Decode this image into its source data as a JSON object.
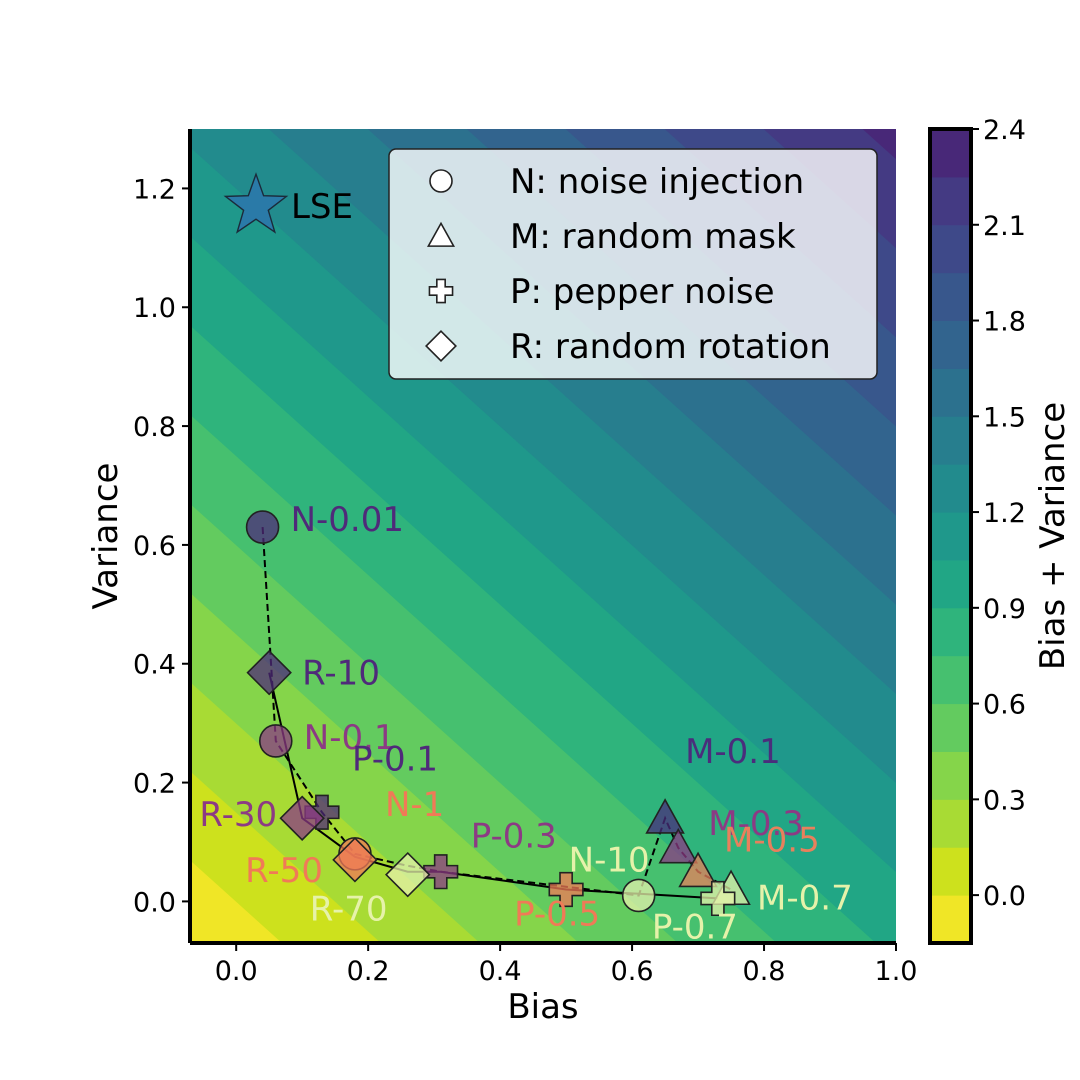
{
  "chart_data": {
    "type": "scatter",
    "xlabel": "Bias",
    "ylabel": "Variance",
    "xlim": [
      -0.07,
      1.0
    ],
    "ylim": [
      -0.07,
      1.3
    ],
    "x_ticks": [
      "0.0",
      "0.2",
      "0.4",
      "0.6",
      "0.8",
      "1.0"
    ],
    "y_ticks": [
      "0.0",
      "0.2",
      "0.4",
      "0.6",
      "0.8",
      "1.0",
      "1.2"
    ],
    "background": {
      "type": "filled-contour",
      "quantity": "Bias + Variance",
      "levels": [
        -0.15,
        0.0,
        0.15,
        0.3,
        0.45,
        0.6,
        0.75,
        0.9,
        1.05,
        1.2,
        1.35,
        1.5,
        1.65,
        1.8,
        1.95,
        2.1,
        2.25,
        2.4
      ],
      "colors": [
        "#f0e626",
        "#cde11d",
        "#a8db34",
        "#85d54a",
        "#63cb5f",
        "#46c06f",
        "#2fb47c",
        "#21a685",
        "#1f988b",
        "#228b8d",
        "#277e8e",
        "#2c718e",
        "#32648e",
        "#38578c",
        "#3e4989",
        "#443a83",
        "#482878",
        "#46125f"
      ]
    },
    "colorbar": {
      "label": "Bias + Variance",
      "ticks": [
        "0.0",
        "0.3",
        "0.6",
        "0.9",
        "1.2",
        "1.5",
        "1.8",
        "2.1",
        "2.4"
      ]
    },
    "legend": {
      "placement": "top-right",
      "entries": [
        {
          "marker": "circle",
          "label": "N: noise injection"
        },
        {
          "marker": "triangle",
          "label": "M: random mask"
        },
        {
          "marker": "plus",
          "label": "P: pepper noise"
        },
        {
          "marker": "diamond",
          "label": "R: random rotation"
        }
      ]
    },
    "lse": {
      "label": "LSE",
      "x": 0.03,
      "y": 1.17,
      "color": "#2a7aa8"
    },
    "points": [
      {
        "label": "N-0.01",
        "marker": "circle",
        "x": 0.04,
        "y": 0.63,
        "color": "#4f2a7a"
      },
      {
        "label": "N-0.1",
        "marker": "circle",
        "x": 0.06,
        "y": 0.27,
        "color": "#8c3a84"
      },
      {
        "label": "N-1",
        "marker": "circle",
        "x": 0.18,
        "y": 0.08,
        "color": "#f07a57"
      },
      {
        "label": "N-10",
        "marker": "circle",
        "x": 0.61,
        "y": 0.01,
        "color": "#e6f2aa"
      },
      {
        "label": "M-0.1",
        "marker": "triangle",
        "x": 0.65,
        "y": 0.14,
        "color": "#4a2d7c"
      },
      {
        "label": "M-0.3",
        "marker": "triangle",
        "x": 0.67,
        "y": 0.09,
        "color": "#8c3a84"
      },
      {
        "label": "M-0.5",
        "marker": "triangle",
        "x": 0.7,
        "y": 0.05,
        "color": "#e8805c"
      },
      {
        "label": "M-0.7",
        "marker": "triangle",
        "x": 0.75,
        "y": 0.02,
        "color": "#e6f2aa"
      },
      {
        "label": "P-0.1",
        "marker": "plus",
        "x": 0.13,
        "y": 0.15,
        "color": "#4f2a7a"
      },
      {
        "label": "P-0.3",
        "marker": "plus",
        "x": 0.31,
        "y": 0.05,
        "color": "#8c3a84"
      },
      {
        "label": "P-0.5",
        "marker": "plus",
        "x": 0.5,
        "y": 0.02,
        "color": "#f07a57"
      },
      {
        "label": "P-0.7",
        "marker": "plus",
        "x": 0.73,
        "y": 0.005,
        "color": "#e6f2aa"
      },
      {
        "label": "R-10",
        "marker": "diamond",
        "x": 0.05,
        "y": 0.385,
        "color": "#4f2a7a"
      },
      {
        "label": "R-30",
        "marker": "diamond",
        "x": 0.1,
        "y": 0.14,
        "color": "#8c3a84"
      },
      {
        "label": "R-50",
        "marker": "diamond",
        "x": 0.18,
        "y": 0.07,
        "color": "#f07a57"
      },
      {
        "label": "R-70",
        "marker": "diamond",
        "x": 0.26,
        "y": 0.045,
        "color": "#e6f2aa"
      }
    ],
    "solid_line": {
      "x": [
        0.05,
        0.1,
        0.18,
        0.26,
        0.31,
        0.5,
        0.73
      ],
      "y": [
        0.385,
        0.14,
        0.075,
        0.05,
        0.05,
        0.02,
        0.005
      ]
    },
    "dashed_line": {
      "x": [
        0.04,
        0.06,
        0.13,
        0.18,
        0.26,
        0.31,
        0.61,
        0.65,
        0.67,
        0.7,
        0.75
      ],
      "y": [
        0.63,
        0.27,
        0.15,
        0.08,
        0.06,
        0.05,
        0.01,
        0.14,
        0.09,
        0.05,
        0.02
      ]
    }
  }
}
